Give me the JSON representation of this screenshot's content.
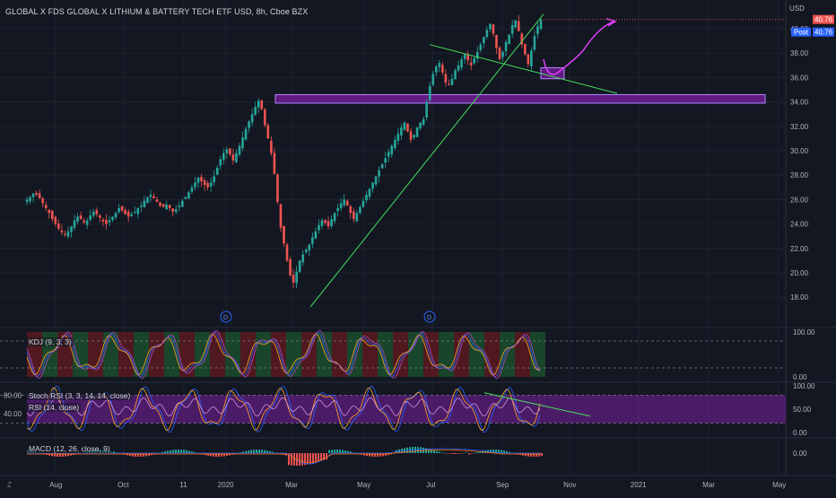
{
  "header": {
    "title": "GLOBAL X FDS GLOBAL X LITHIUM & BATTERY TECH ETF USD, 8h, Cboe BZX"
  },
  "currency": "USD",
  "price_tags": {
    "last": "40.76",
    "post_label": "Post",
    "post": "40.76"
  },
  "main_axis": {
    "ticks": [
      "40.00",
      "38.00",
      "36.00",
      "34.00",
      "32.00",
      "30.00",
      "28.00",
      "26.00",
      "24.00",
      "22.00",
      "20.00",
      "18.00"
    ]
  },
  "kdj": {
    "label": "KDJ (9, 3, 3)",
    "ticks": [
      "100.00",
      "0.00"
    ]
  },
  "rsi_pane": {
    "label1": "Stoch RSI (3, 3, 14, 14, close)",
    "label2": "RSI (14, close)",
    "left_ticks": [
      "80.00",
      "40.00"
    ],
    "ticks": [
      "100.00",
      "50.00",
      "0.00"
    ]
  },
  "macd": {
    "label": "MACD (12, 26, close, 9)",
    "ticks": [
      "0.00"
    ]
  },
  "time_axis": {
    "labels": [
      "Aug",
      "Oct",
      "11",
      "2020",
      "Mar",
      "May",
      "Jul",
      "Sep",
      "Nov",
      "2021",
      "Mar",
      "May"
    ]
  },
  "markers": {
    "dividend": "D",
    "corner": "Z"
  },
  "colors": {
    "up": "#26a69a",
    "down": "#ef5350",
    "zone": "#7b1fa2",
    "trend": "#43e05a",
    "projection": "#e040fb"
  },
  "chart_data": {
    "type": "candlestick",
    "symbol": "GLOBAL X FDS GLOBAL X LITHIUM & BATTERY TECH ETF",
    "interval": "8h",
    "ylim": [
      17,
      41.5
    ],
    "last_price": 40.76,
    "series": [
      {
        "values": [
          26.0,
          26.2,
          26.5,
          26.4,
          26.1,
          25.7,
          25.3,
          24.9,
          24.4,
          24.0,
          23.6,
          23.3,
          23.1,
          23.4,
          23.8,
          24.3,
          24.6,
          24.4,
          24.1,
          24.3,
          24.7,
          25.0,
          24.8,
          24.5,
          24.2,
          24.0,
          24.3,
          24.6,
          24.9,
          25.3,
          25.1,
          24.8,
          24.6,
          24.8,
          25.0,
          25.3,
          25.5,
          25.9,
          26.2,
          26.4,
          26.1,
          25.8,
          25.5,
          25.4,
          25.6,
          25.3,
          25.0,
          25.2,
          25.5,
          25.9,
          26.2,
          26.6,
          27.0,
          27.4,
          27.8,
          27.5,
          27.2,
          27.0,
          27.4,
          27.9,
          28.6,
          29.3,
          29.8,
          30.1,
          29.7,
          29.2,
          29.8,
          30.4,
          31.1,
          31.8,
          32.4,
          33.0,
          33.6,
          34.1,
          33.4,
          32.1,
          31.0,
          29.8,
          28.1,
          25.8,
          23.7,
          22.4,
          21.0,
          19.8,
          19.2,
          20.1,
          21.0,
          21.5,
          21.9,
          22.3,
          22.9,
          23.4,
          23.9,
          24.3,
          24.1,
          23.8,
          24.4,
          24.9,
          25.3,
          25.7,
          26.0,
          25.5,
          24.9,
          24.4,
          24.9,
          25.4,
          25.9,
          26.4,
          26.9,
          27.4,
          27.9,
          28.4,
          28.9,
          29.4,
          29.9,
          30.4,
          30.9,
          31.4,
          31.9,
          32.3,
          31.6,
          30.9,
          31.3,
          31.9,
          32.3,
          32.6,
          34.0,
          35.3,
          36.3,
          36.9,
          37.2,
          36.4,
          35.6,
          35.4,
          35.9,
          36.6,
          37.0,
          37.5,
          37.9,
          37.4,
          37.0,
          37.6,
          38.1,
          38.7,
          39.3,
          39.9,
          40.4,
          39.6,
          38.4,
          37.5,
          38.1,
          38.9,
          39.5,
          40.3,
          40.7,
          39.8,
          38.7,
          37.9,
          37.1,
          38.2,
          39.4,
          40.2,
          40.76
        ]
      }
    ],
    "zones": [
      {
        "from": 33.9,
        "to": 34.6
      },
      {
        "from": 35.9,
        "to": 36.8
      }
    ],
    "trendlines": [
      {
        "from": 17.2,
        "to": 41.2
      },
      {
        "from": 38.7,
        "to": 34.7
      }
    ],
    "projection": [
      37.5,
      40.6
    ],
    "sub_panes": [
      "KDJ",
      "Stoch RSI / RSI",
      "MACD"
    ]
  }
}
